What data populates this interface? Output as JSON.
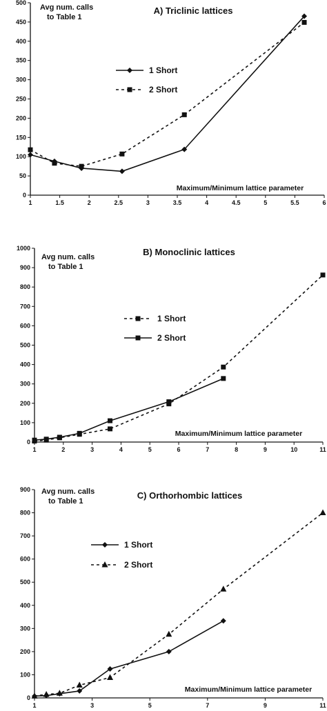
{
  "figure_footer": "",
  "chart_data": [
    {
      "type": "line",
      "title": "A) Triclinic lattices",
      "ylabel_lines": [
        "Avg num. calls",
        "to Table 1"
      ],
      "xlabel": "Maximum/Minimum lattice parameter",
      "xlim": [
        1,
        6
      ],
      "ylim": [
        0,
        500
      ],
      "xticks": [
        1,
        1.5,
        2,
        2.5,
        3,
        3.5,
        4,
        4.5,
        5,
        5.5,
        6
      ],
      "xtick_labels": [
        "1",
        "1.5",
        "2",
        "2.5",
        "3",
        "3.5",
        "4",
        "4.5",
        "5",
        "5.5",
        "6"
      ],
      "yticks": [
        0,
        50,
        100,
        150,
        200,
        250,
        300,
        350,
        400,
        450,
        500
      ],
      "legend_position": "center-left",
      "series": [
        {
          "name": "1 Short",
          "line": "solid",
          "marker": "diamond",
          "x": [
            1,
            1.41,
            1.87,
            2.56,
            3.62,
            5.66
          ],
          "y": [
            105,
            88,
            70,
            62,
            119,
            465
          ]
        },
        {
          "name": "2 Short",
          "line": "dashed",
          "marker": "square",
          "x": [
            1,
            1.41,
            1.87,
            2.56,
            3.62,
            5.66
          ],
          "y": [
            118,
            83,
            75,
            107,
            209,
            449
          ]
        }
      ]
    },
    {
      "type": "line",
      "title": "B) Monoclinic lattices",
      "ylabel_lines": [
        "Avg num. calls",
        "to Table 1"
      ],
      "xlabel": "Maximum/Minimum lattice parameter",
      "xlim": [
        1,
        11
      ],
      "ylim": [
        0,
        1000
      ],
      "xticks": [
        1,
        2,
        3,
        4,
        5,
        6,
        7,
        8,
        9,
        10,
        11
      ],
      "xtick_labels": [
        "1",
        "2",
        "3",
        "4",
        "5",
        "6",
        "7",
        "8",
        "9",
        "10",
        "11"
      ],
      "yticks": [
        0,
        100,
        200,
        300,
        400,
        500,
        600,
        700,
        800,
        900,
        1000
      ],
      "legend_position": "center-left",
      "series": [
        {
          "name": "1 Short",
          "line": "dashed",
          "marker": "square",
          "x": [
            1,
            1.41,
            1.87,
            2.56,
            3.62,
            5.66,
            7.55,
            11
          ],
          "y": [
            5,
            10,
            22,
            40,
            68,
            197,
            387,
            862
          ]
        },
        {
          "name": "2 Short",
          "line": "solid",
          "marker": "square",
          "x": [
            1,
            1.41,
            1.87,
            2.56,
            3.62,
            5.66,
            7.55
          ],
          "y": [
            10,
            15,
            25,
            45,
            110,
            208,
            328
          ]
        }
      ]
    },
    {
      "type": "line",
      "title": "C) Orthorhombic  lattices",
      "ylabel_lines": [
        "Avg num. calls",
        "to Table 1"
      ],
      "xlabel": "Maximum/Minimum lattice parameter",
      "xlim": [
        1,
        11
      ],
      "ylim": [
        0,
        900
      ],
      "xticks": [
        1,
        3,
        5,
        7,
        9,
        11
      ],
      "xtick_labels": [
        "1",
        "3",
        "5",
        "7",
        "9",
        "11"
      ],
      "yticks": [
        0,
        100,
        200,
        300,
        400,
        500,
        600,
        700,
        800,
        900
      ],
      "legend_position": "center-left",
      "series": [
        {
          "name": "1 Short",
          "line": "solid",
          "marker": "diamond",
          "x": [
            1,
            1.41,
            1.87,
            2.56,
            3.62,
            5.66,
            7.55
          ],
          "y": [
            8,
            10,
            18,
            30,
            125,
            200,
            333
          ]
        },
        {
          "name": "2 Short",
          "line": "dashed",
          "marker": "triangle",
          "x": [
            1,
            1.41,
            1.87,
            2.56,
            3.62,
            5.66,
            7.55,
            11
          ],
          "y": [
            8,
            15,
            20,
            55,
            88,
            275,
            470,
            800
          ]
        }
      ]
    }
  ]
}
